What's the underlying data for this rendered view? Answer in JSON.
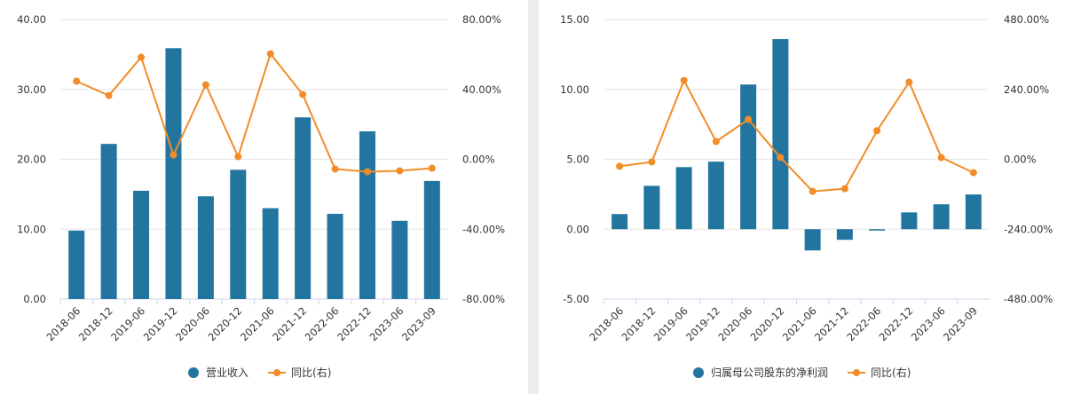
{
  "chart_data": [
    {
      "type": "bar",
      "categories": [
        "2018-06",
        "2018-12",
        "2019-06",
        "2019-12",
        "2020-06",
        "2020-12",
        "2021-06",
        "2021-12",
        "2022-06",
        "2022-12",
        "2023-06",
        "2023-09"
      ],
      "series": [
        {
          "name": "营业收入",
          "color": "#21759f",
          "type": "bar",
          "values": [
            9.8,
            22.2,
            15.5,
            35.9,
            14.7,
            18.5,
            13.0,
            26.0,
            12.2,
            24.0,
            11.2,
            16.9
          ]
        },
        {
          "name": "同比(右)",
          "color": "#f28c28",
          "type": "line",
          "axis": "y2",
          "values": [
            44.7,
            36.5,
            58.4,
            2.5,
            42.6,
            1.5,
            60.4,
            37.1,
            -5.6,
            -7.1,
            -6.6,
            -5.1
          ]
        }
      ],
      "ylim": [
        0,
        40
      ],
      "yticks": [
        {
          "value": 0,
          "label": "0.00"
        },
        {
          "value": 10,
          "label": "10.00"
        },
        {
          "value": 20,
          "label": "20.00"
        },
        {
          "value": 30,
          "label": "30.00"
        },
        {
          "value": 40,
          "label": "40.00"
        }
      ],
      "y2lim": [
        -80,
        80
      ],
      "y2ticks": [
        {
          "value": -80,
          "label": "-80.00%"
        },
        {
          "value": -40,
          "label": "-40.00%"
        },
        {
          "value": 0,
          "label": "0.00%"
        },
        {
          "value": 40,
          "label": "40.00%"
        },
        {
          "value": 80,
          "label": "80.00%"
        }
      ],
      "grid": true,
      "legend": "bottom"
    },
    {
      "type": "bar",
      "categories": [
        "2018-06",
        "2018-12",
        "2019-06",
        "2019-12",
        "2020-06",
        "2020-12",
        "2021-06",
        "2021-12",
        "2022-06",
        "2022-12",
        "2023-06",
        "2023-09"
      ],
      "series": [
        {
          "name": "归属母公司股东的净利润",
          "color": "#21759f",
          "type": "bar",
          "values": [
            1.08,
            3.1,
            4.44,
            4.83,
            10.35,
            13.6,
            -1.52,
            -0.76,
            -0.1,
            1.2,
            1.78,
            2.48
          ]
        },
        {
          "name": "同比(右)",
          "color": "#f28c28",
          "type": "line",
          "axis": "y2",
          "values": [
            -24,
            -9,
            271,
            61,
            137,
            6,
            -110,
            -101,
            98,
            265,
            6,
            -46
          ]
        }
      ],
      "ylim": [
        -5,
        15
      ],
      "yticks": [
        {
          "value": -5,
          "label": "-5.00"
        },
        {
          "value": 0,
          "label": "0.00"
        },
        {
          "value": 5,
          "label": "5.00"
        },
        {
          "value": 10,
          "label": "10.00"
        },
        {
          "value": 15,
          "label": "15.00"
        }
      ],
      "y2lim": [
        -480,
        480
      ],
      "y2ticks": [
        {
          "value": -480,
          "label": "-480.00%"
        },
        {
          "value": -240,
          "label": "-240.00%"
        },
        {
          "value": 0,
          "label": "0.00%"
        },
        {
          "value": 240,
          "label": "240.00%"
        },
        {
          "value": 480,
          "label": "480.00%"
        }
      ],
      "grid": true,
      "legend": "bottom"
    }
  ]
}
